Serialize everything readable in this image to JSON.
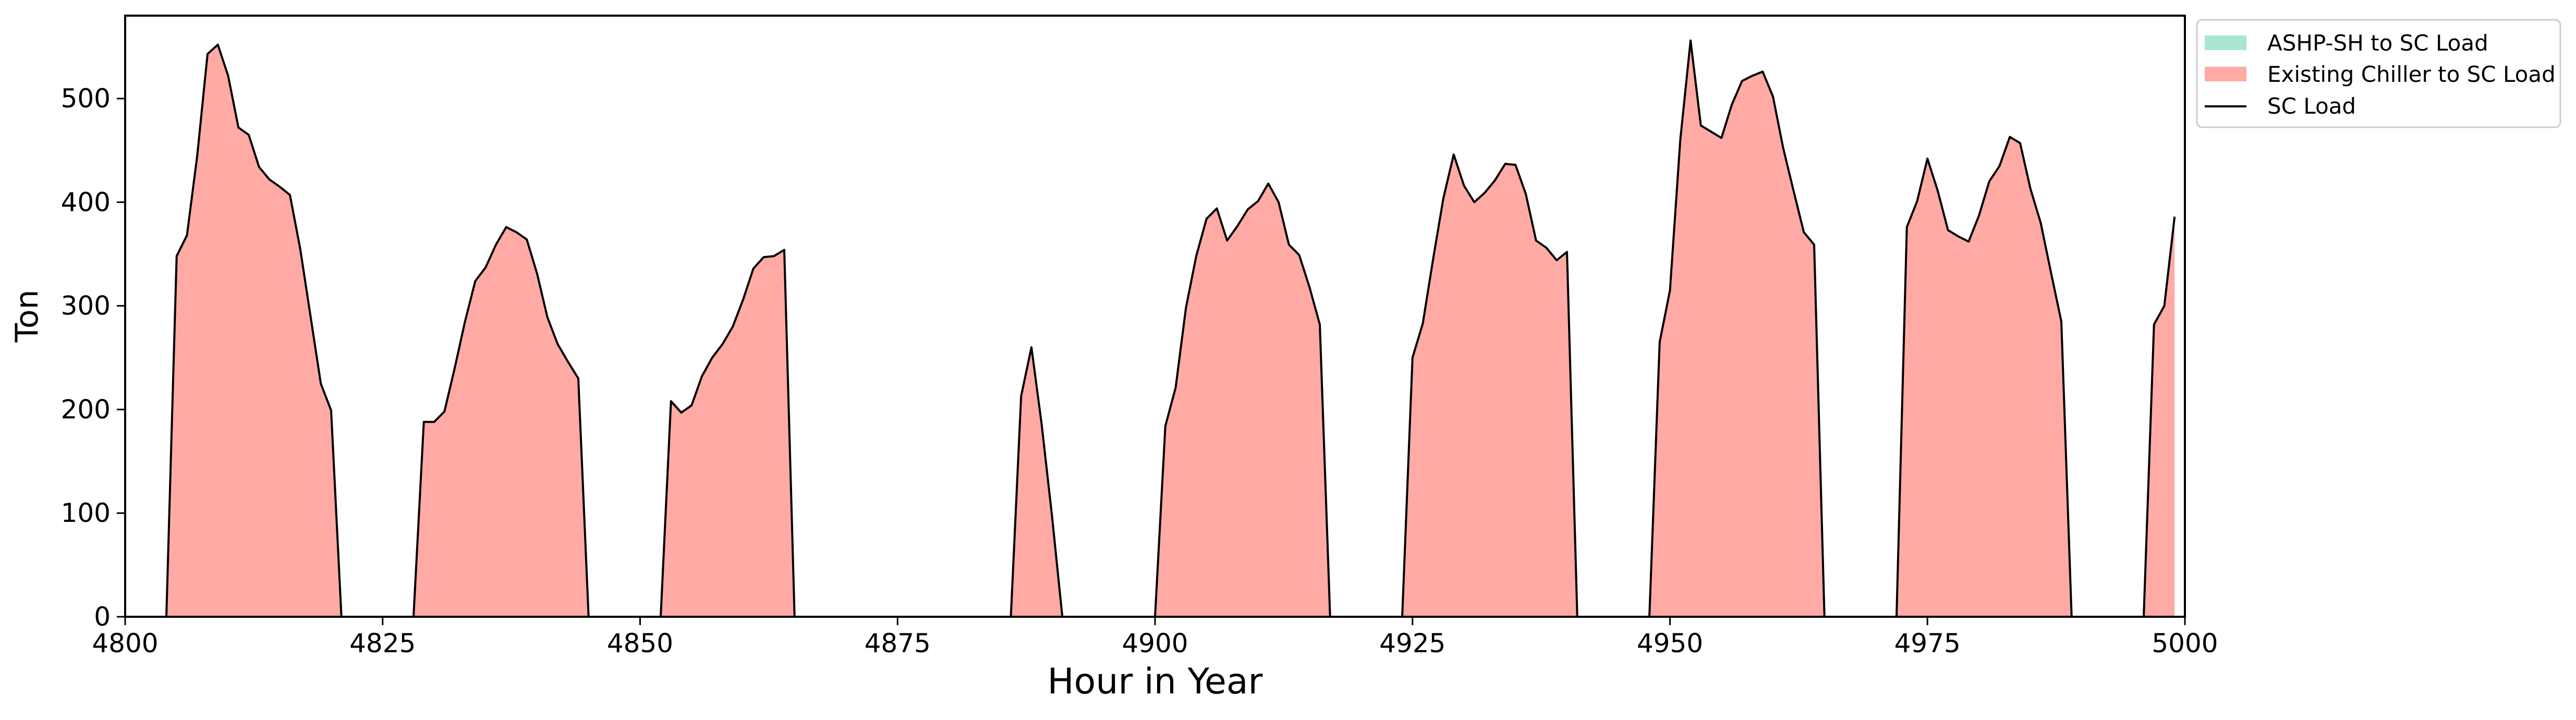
{
  "chart_data": {
    "type": "area",
    "xlabel": "Hour in Year",
    "ylabel": "Ton",
    "xlim": [
      4800,
      5000
    ],
    "ylim": [
      0,
      580
    ],
    "xticks": [
      4800,
      4825,
      4850,
      4875,
      4900,
      4925,
      4950,
      4975,
      5000
    ],
    "yticks": [
      0,
      100,
      200,
      300,
      400,
      500
    ],
    "grid": false,
    "legend_position": "outside-top-right",
    "x": [
      4800,
      4801,
      4802,
      4803,
      4804,
      4805,
      4806,
      4807,
      4808,
      4809,
      4810,
      4811,
      4812,
      4813,
      4814,
      4815,
      4816,
      4817,
      4818,
      4819,
      4820,
      4821,
      4822,
      4823,
      4824,
      4825,
      4826,
      4827,
      4828,
      4829,
      4830,
      4831,
      4832,
      4833,
      4834,
      4835,
      4836,
      4837,
      4838,
      4839,
      4840,
      4841,
      4842,
      4843,
      4844,
      4845,
      4846,
      4847,
      4848,
      4849,
      4850,
      4851,
      4852,
      4853,
      4854,
      4855,
      4856,
      4857,
      4858,
      4859,
      4860,
      4861,
      4862,
      4863,
      4864,
      4865,
      4866,
      4867,
      4868,
      4869,
      4870,
      4871,
      4872,
      4873,
      4874,
      4875,
      4876,
      4877,
      4878,
      4879,
      4880,
      4881,
      4882,
      4883,
      4884,
      4885,
      4886,
      4887,
      4888,
      4889,
      4890,
      4891,
      4892,
      4893,
      4894,
      4895,
      4896,
      4897,
      4898,
      4899,
      4900,
      4901,
      4902,
      4903,
      4904,
      4905,
      4906,
      4907,
      4908,
      4909,
      4910,
      4911,
      4912,
      4913,
      4914,
      4915,
      4916,
      4917,
      4918,
      4919,
      4920,
      4921,
      4922,
      4923,
      4924,
      4925,
      4926,
      4927,
      4928,
      4929,
      4930,
      4931,
      4932,
      4933,
      4934,
      4935,
      4936,
      4937,
      4938,
      4939,
      4940,
      4941,
      4942,
      4943,
      4944,
      4945,
      4946,
      4947,
      4948,
      4949,
      4950,
      4951,
      4952,
      4953,
      4954,
      4955,
      4956,
      4957,
      4958,
      4959,
      4960,
      4961,
      4962,
      4963,
      4964,
      4965,
      4966,
      4967,
      4968,
      4969,
      4970,
      4971,
      4972,
      4973,
      4974,
      4975,
      4976,
      4977,
      4978,
      4979,
      4980,
      4981,
      4982,
      4983,
      4984,
      4985,
      4986,
      4987,
      4988,
      4989,
      4990,
      4991,
      4992,
      4993,
      4994,
      4995,
      4996,
      4997,
      4998,
      4999
    ],
    "series": [
      {
        "name": "ASHP-SH to SC Load",
        "color": "#a8e6cf",
        "values": [
          0,
          0,
          0,
          0,
          0,
          0,
          0,
          0,
          0,
          0,
          0,
          0,
          0,
          0,
          0,
          0,
          0,
          0,
          0,
          0,
          0,
          0,
          0,
          0,
          0,
          0,
          0,
          0,
          0,
          0,
          0,
          0,
          0,
          0,
          0,
          0,
          0,
          0,
          0,
          0,
          0,
          0,
          0,
          0,
          0,
          0,
          0,
          0,
          0,
          0,
          0,
          0,
          0,
          0,
          0,
          0,
          0,
          0,
          0,
          0,
          0,
          0,
          0,
          0,
          0,
          0,
          0,
          0,
          0,
          0,
          0,
          0,
          0,
          0,
          0,
          0,
          0,
          0,
          0,
          0,
          0,
          0,
          0,
          0,
          0,
          0,
          0,
          0,
          0,
          0,
          0,
          0,
          0,
          0,
          0,
          0,
          0,
          0,
          0,
          0,
          0,
          0,
          0,
          0,
          0,
          0,
          0,
          0,
          0,
          0,
          0,
          0,
          0,
          0,
          0,
          0,
          0,
          0,
          0,
          0,
          0,
          0,
          0,
          0,
          0,
          0,
          0,
          0,
          0,
          0,
          0,
          0,
          0,
          0,
          0,
          0,
          0,
          0,
          0,
          0,
          0,
          0,
          0,
          0,
          0,
          0,
          0,
          0,
          0,
          0,
          0,
          0,
          0,
          0,
          0,
          0,
          0,
          0,
          0,
          0,
          0,
          0,
          0,
          0,
          0,
          0,
          0,
          0,
          0,
          0,
          0,
          0,
          0,
          0,
          0,
          0,
          0,
          0,
          0,
          0,
          0,
          0,
          0,
          0,
          0,
          0,
          0,
          0,
          0,
          0,
          0,
          0,
          0,
          0,
          0,
          0,
          0,
          0,
          0,
          0
        ]
      },
      {
        "name": "Existing Chiller to SC Load",
        "color": "#ffaaa5",
        "values": [
          0,
          0,
          0,
          0,
          0,
          348,
          368,
          445,
          543,
          552,
          522,
          472,
          465,
          434,
          422,
          415,
          407,
          355,
          290,
          225,
          199,
          0,
          0,
          0,
          0,
          0,
          0,
          0,
          0,
          188,
          188,
          198,
          240,
          285,
          324,
          337,
          359,
          376,
          371,
          364,
          331,
          289,
          263,
          246,
          230,
          0,
          0,
          0,
          0,
          0,
          0,
          0,
          0,
          208,
          197,
          204,
          232,
          250,
          263,
          280,
          306,
          336,
          347,
          348,
          354,
          0,
          0,
          0,
          0,
          0,
          0,
          0,
          0,
          0,
          0,
          0,
          0,
          0,
          0,
          0,
          0,
          0,
          0,
          0,
          0,
          0,
          0,
          213,
          260,
          185,
          97,
          0,
          0,
          0,
          0,
          0,
          0,
          0,
          0,
          0,
          0,
          184,
          221,
          298,
          348,
          384,
          394,
          363,
          377,
          393,
          401,
          418,
          400,
          359,
          349,
          318,
          282,
          0,
          0,
          0,
          0,
          0,
          0,
          0,
          0,
          250,
          283,
          345,
          404,
          446,
          416,
          400,
          409,
          421,
          437,
          436,
          408,
          363,
          356,
          344,
          352,
          0,
          0,
          0,
          0,
          0,
          0,
          0,
          0,
          265,
          315,
          460,
          556,
          474,
          468,
          462,
          494,
          517,
          522,
          526,
          502,
          452,
          411,
          371,
          359,
          0,
          0,
          0,
          0,
          0,
          0,
          0,
          0,
          376,
          401,
          442,
          411,
          373,
          367,
          362,
          387,
          420,
          435,
          463,
          457,
          413,
          380,
          332,
          285,
          0,
          0,
          0,
          0,
          0,
          0,
          0,
          0,
          282,
          300,
          386
        ]
      },
      {
        "name": "SC Load",
        "color": "#000000",
        "values": [
          0,
          0,
          0,
          0,
          0,
          348,
          368,
          445,
          543,
          552,
          522,
          472,
          465,
          434,
          422,
          415,
          407,
          355,
          290,
          225,
          199,
          0,
          0,
          0,
          0,
          0,
          0,
          0,
          0,
          188,
          188,
          198,
          240,
          285,
          324,
          337,
          359,
          376,
          371,
          364,
          331,
          289,
          263,
          246,
          230,
          0,
          0,
          0,
          0,
          0,
          0,
          0,
          0,
          208,
          197,
          204,
          232,
          250,
          263,
          280,
          306,
          336,
          347,
          348,
          354,
          0,
          0,
          0,
          0,
          0,
          0,
          0,
          0,
          0,
          0,
          0,
          0,
          0,
          0,
          0,
          0,
          0,
          0,
          0,
          0,
          0,
          0,
          213,
          260,
          185,
          97,
          0,
          0,
          0,
          0,
          0,
          0,
          0,
          0,
          0,
          0,
          184,
          221,
          298,
          348,
          384,
          394,
          363,
          377,
          393,
          401,
          418,
          400,
          359,
          349,
          318,
          282,
          0,
          0,
          0,
          0,
          0,
          0,
          0,
          0,
          250,
          283,
          345,
          404,
          446,
          416,
          400,
          409,
          421,
          437,
          436,
          408,
          363,
          356,
          344,
          352,
          0,
          0,
          0,
          0,
          0,
          0,
          0,
          0,
          265,
          315,
          460,
          556,
          474,
          468,
          462,
          494,
          517,
          522,
          526,
          502,
          452,
          411,
          371,
          359,
          0,
          0,
          0,
          0,
          0,
          0,
          0,
          0,
          376,
          401,
          442,
          411,
          373,
          367,
          362,
          387,
          420,
          435,
          463,
          457,
          413,
          380,
          332,
          285,
          0,
          0,
          0,
          0,
          0,
          0,
          0,
          0,
          282,
          300,
          386
        ]
      }
    ]
  }
}
